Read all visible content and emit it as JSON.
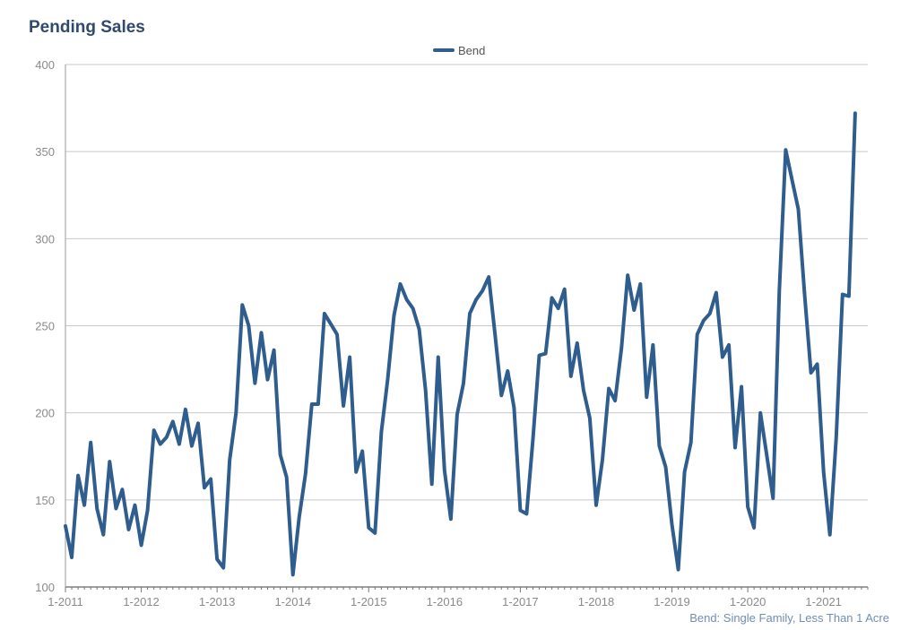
{
  "title": "Pending Sales",
  "footnote": "Bend: Single Family, Less Than 1 Acre",
  "chart_data": {
    "type": "line",
    "title": "Pending Sales",
    "xlabel": "",
    "ylabel": "",
    "ylim": [
      100,
      400
    ],
    "yticks": [
      100,
      150,
      200,
      250,
      300,
      350,
      400
    ],
    "xticks": [
      "1-2011",
      "1-2012",
      "1-2013",
      "1-2014",
      "1-2015",
      "1-2016",
      "1-2017",
      "1-2018",
      "1-2019",
      "1-2020",
      "1-2021"
    ],
    "x_start": "1-2011",
    "x_frequency": "monthly",
    "grid": true,
    "legend_position": "top-center",
    "color": "#2e5d8e",
    "series": [
      {
        "name": "Bend",
        "values": [
          135,
          117,
          164,
          147,
          183,
          145,
          130,
          172,
          145,
          156,
          133,
          147,
          124,
          144,
          190,
          182,
          186,
          195,
          182,
          202,
          181,
          194,
          157,
          162,
          116,
          111,
          173,
          200,
          262,
          250,
          217,
          246,
          219,
          236,
          176,
          163,
          107,
          140,
          165,
          205,
          205,
          257,
          251,
          245,
          204,
          232,
          166,
          178,
          134,
          131,
          189,
          219,
          256,
          274,
          265,
          260,
          248,
          213,
          159,
          232,
          167,
          139,
          199,
          217,
          257,
          265,
          270,
          278,
          245,
          210,
          224,
          203,
          144,
          142,
          185,
          233,
          234,
          266,
          260,
          271,
          221,
          240,
          213,
          197,
          147,
          173,
          214,
          207,
          237,
          279,
          259,
          274,
          209,
          239,
          181,
          169,
          136,
          110,
          166,
          183,
          245,
          253,
          257,
          269,
          232,
          239,
          180,
          215,
          146,
          134,
          200,
          176,
          151,
          270,
          351,
          334,
          317,
          268,
          223,
          228,
          166,
          130,
          186,
          268,
          267,
          372
        ]
      }
    ]
  }
}
